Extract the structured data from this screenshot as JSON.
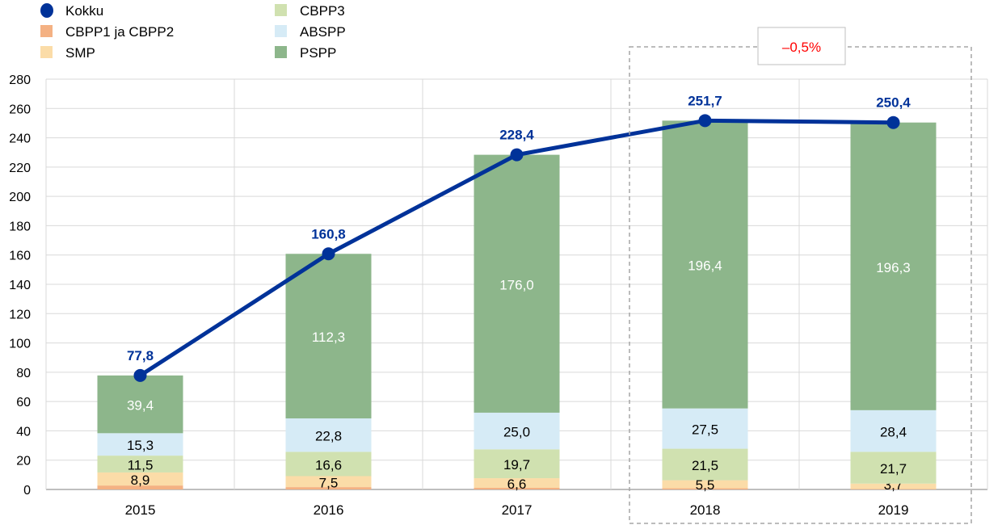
{
  "chart_data": {
    "type": "bar",
    "stacked": true,
    "categories": [
      "2015",
      "2016",
      "2017",
      "2018",
      "2019"
    ],
    "ylim": [
      0,
      280
    ],
    "yticks": [
      0,
      20,
      40,
      60,
      80,
      100,
      120,
      140,
      160,
      180,
      200,
      220,
      240,
      260,
      280
    ],
    "grid": true,
    "legend_position": "top-left",
    "series": [
      {
        "name": "CBPP1 ja CBPP2",
        "color": "#f4b183",
        "values": [
          2.7,
          1.6,
          1.1,
          0.8,
          0.3
        ],
        "labels": [
          "",
          "",
          "",
          "",
          ""
        ]
      },
      {
        "name": "SMP",
        "color": "#fbdca8",
        "values": [
          8.9,
          7.5,
          6.6,
          5.5,
          3.7
        ],
        "labels": [
          "8,9",
          "7,5",
          "6,6",
          "5,5",
          "3,7"
        ]
      },
      {
        "name": "CBPP3",
        "color": "#d0e1b0",
        "values": [
          11.5,
          16.6,
          19.7,
          21.5,
          21.7
        ],
        "labels": [
          "11,5",
          "16,6",
          "19,7",
          "21,5",
          "21,7"
        ]
      },
      {
        "name": "ABSPP",
        "color": "#d6ebf6",
        "values": [
          15.3,
          22.8,
          25.0,
          27.5,
          28.4
        ],
        "labels": [
          "15,3",
          "22,8",
          "25,0",
          "27,5",
          "28,4"
        ]
      },
      {
        "name": "PSPP",
        "color": "#8db68b",
        "values": [
          39.4,
          112.3,
          176.0,
          196.4,
          196.3
        ],
        "labels": [
          "39,4",
          "112,3",
          "176,0",
          "196,4",
          "196,3"
        ]
      }
    ],
    "line": {
      "name": "Kokku",
      "color": "#003299",
      "values": [
        77.8,
        160.8,
        228.4,
        251.7,
        250.4
      ],
      "labels": [
        "77,8",
        "160,8",
        "228,4",
        "251,7",
        "250,4"
      ]
    },
    "annotation": {
      "text": "–0,5%",
      "color": "#ff0000",
      "applies_to": [
        "2018",
        "2019"
      ]
    }
  }
}
